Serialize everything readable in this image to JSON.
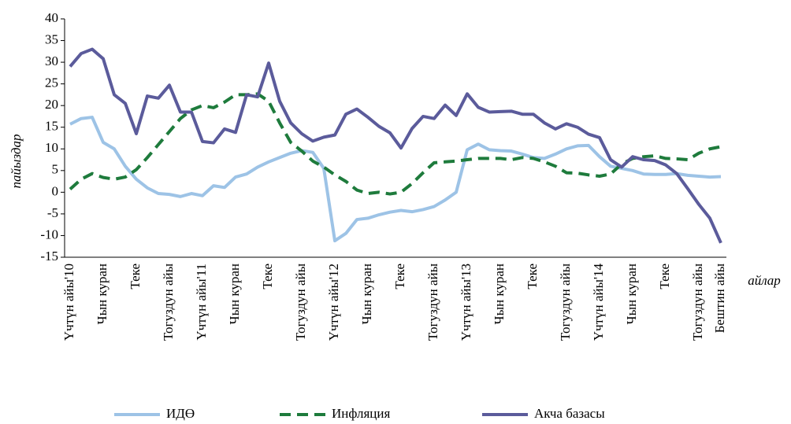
{
  "chart_data": {
    "type": "line",
    "y_label": "пайыздар",
    "x_label": "айлар",
    "categories": [
      "Үчтүн айы'10",
      null,
      null,
      "Чын куран",
      null,
      null,
      "Теке",
      null,
      null,
      "Тогуздун айы",
      null,
      null,
      "Үчтүн айы'11",
      null,
      null,
      "Чын куран",
      null,
      null,
      "Теке",
      null,
      null,
      "Тогуздун айы",
      null,
      null,
      "Үчтүн айы'12",
      null,
      null,
      "Чын куран",
      null,
      null,
      "Теке",
      null,
      null,
      "Тогуздун айы",
      null,
      null,
      "Үчтүн айы'13",
      null,
      null,
      "Чын куран",
      null,
      null,
      "Теке",
      null,
      null,
      "Тогуздун айы",
      null,
      null,
      "Үчтүн айы'14",
      null,
      null,
      "Чын куран",
      null,
      null,
      "Теке",
      null,
      null,
      "Тогуздун айы",
      null,
      "Бештин айы"
    ],
    "series": [
      {
        "name": "ИДӨ",
        "color": "#9dc3e6",
        "dashed": false,
        "values": [
          15.7,
          17,
          17.3,
          11.5,
          10,
          6,
          3,
          1,
          -0.3,
          -0.5,
          -1,
          -0.3,
          -0.8,
          1.5,
          1.1,
          3.5,
          4.2,
          5.8,
          7,
          8,
          9,
          9.6,
          9.2,
          5.5,
          -11.2,
          -9.5,
          -6.3,
          -6,
          -5.2,
          -4.6,
          -4.2,
          -4.5,
          -4,
          -3.3,
          -1.8,
          0,
          9.8,
          11.1,
          9.8,
          9.6,
          9.5,
          8.8,
          8,
          7.8,
          8.8,
          10,
          10.7,
          10.8,
          8.2,
          6,
          5.5,
          5,
          4.2,
          4.1,
          4.1,
          4.3,
          3.9,
          3.7,
          3.5,
          3.6
        ]
      },
      {
        "name": "Инфляция",
        "color": "#1e7b3c",
        "dashed": true,
        "values": [
          0.7,
          3,
          4.3,
          3.4,
          3,
          3.5,
          5.2,
          8,
          11,
          14,
          17,
          19,
          20,
          19.5,
          20.8,
          22.5,
          22.5,
          22.7,
          21,
          16,
          11.5,
          9.5,
          7.2,
          5.8,
          4,
          2.5,
          0.5,
          -0.3,
          0,
          -0.4,
          0,
          2,
          4.5,
          6.8,
          7,
          7.2,
          7.5,
          7.8,
          7.8,
          7.8,
          7.5,
          8,
          7.8,
          7,
          6,
          4.5,
          4.4,
          4,
          3.7,
          4.2,
          6.5,
          7.8,
          8.2,
          8.4,
          7.8,
          7.7,
          7.5,
          9,
          10,
          10.5
        ]
      },
      {
        "name": "Акча базасы",
        "color": "#5b5b9b",
        "dashed": false,
        "values": [
          29,
          32,
          33,
          30.8,
          22.5,
          20.5,
          13.5,
          22.2,
          21.7,
          24.7,
          18.5,
          18.5,
          11.7,
          11.4,
          14.6,
          13.8,
          22.5,
          22,
          29.8,
          21,
          16,
          13.5,
          11.8,
          12.7,
          13.2,
          18,
          19.2,
          17.3,
          15.2,
          13.7,
          10.2,
          14.7,
          17.5,
          17,
          20.1,
          17.7,
          22.7,
          19.6,
          18.5,
          18.6,
          18.7,
          18,
          18,
          16,
          14.6,
          15.8,
          15,
          13.4,
          12.6,
          7.5,
          5.8,
          8.2,
          7.5,
          7.3,
          6.3,
          4.3,
          0.8,
          -2.8,
          -6,
          -11.7
        ]
      }
    ],
    "ylim": [
      -15,
      40
    ],
    "yticks": [
      -15,
      -10,
      -5,
      0,
      5,
      10,
      15,
      20,
      25,
      30,
      35,
      40
    ],
    "grid": false,
    "legend": "bottom"
  }
}
